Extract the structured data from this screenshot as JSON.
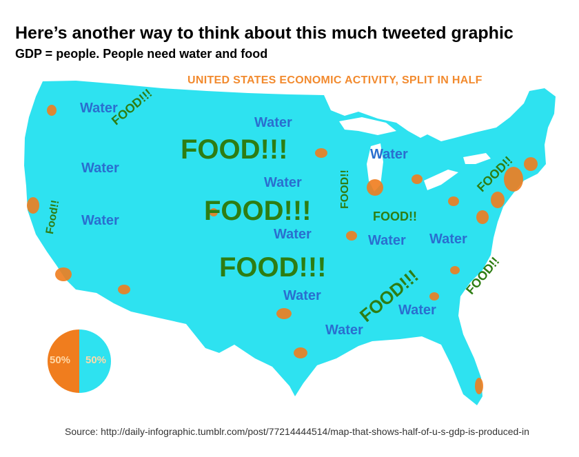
{
  "header": {
    "title": "Here’s another way to think about this much tweeted graphic",
    "subtitle": "GDP = people. People need water and food"
  },
  "map": {
    "heading": "UNITED STATES ECONOMIC ACTIVITY, SPLIT IN HALF",
    "land_color": "#2ee2f0",
    "hotspot_color": "#f07d1e",
    "water_labels": [
      "Water",
      "Water",
      "Water",
      "Water",
      "Water",
      "Water",
      "Water",
      "Water",
      "Water",
      "Water",
      "Water",
      "Water",
      "Water"
    ],
    "food_big": [
      "FOOD!!!",
      "FOOD!!!",
      "FOOD!!!"
    ],
    "food_small": [
      "FOOD!!!",
      "Food!!",
      "FOOD!!",
      "FOOD!!",
      "FOOD!!",
      "FOOD!!!",
      "FOOD!!"
    ]
  },
  "pie": {
    "left_label": "50%",
    "right_label": "50%",
    "left_color": "#f07d1e",
    "right_color": "#2ee2f0",
    "left_share": 50,
    "right_share": 50
  },
  "footer": {
    "source": "Source: http://daily-infographic.tumblr.com/post/77214444514/map-that-shows-half-of-u-s-gdp-is-produced-in"
  }
}
